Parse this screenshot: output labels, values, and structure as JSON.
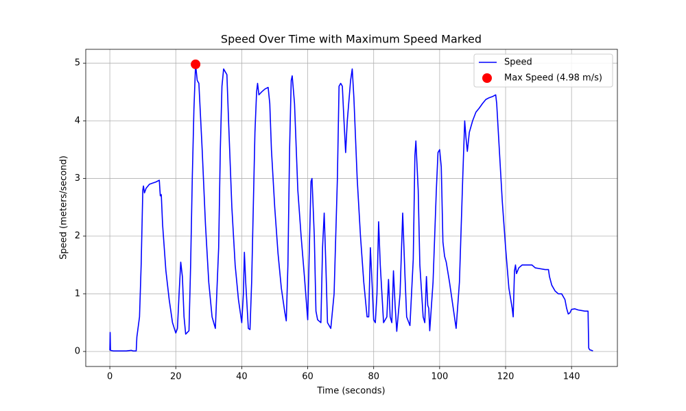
{
  "chart_data": {
    "type": "line",
    "title": "Speed Over Time with Maximum Speed Marked",
    "x_label": "Time (seconds)",
    "y_label": "Speed (meters/second)",
    "xlim": [
      -7.3,
      153.9
    ],
    "ylim": [
      -0.26,
      5.24
    ],
    "xticks": [
      0,
      20,
      40,
      60,
      80,
      100,
      120,
      140
    ],
    "yticks": [
      0,
      1,
      2,
      3,
      4,
      5
    ],
    "grid": true,
    "legend": "upper right",
    "series": [
      {
        "name": "Speed",
        "color": "blue",
        "type": "line",
        "x": [
          0,
          0.1,
          0.2,
          1,
          5,
          6.5,
          7,
          8,
          8.2,
          9,
          9.5,
          10,
          10.2,
          10.5,
          11,
          12,
          13,
          14,
          15,
          15.3,
          15.6,
          16,
          17,
          18,
          19,
          20,
          20.5,
          21,
          21.5,
          22,
          22.5,
          23,
          24,
          24.5,
          25,
          25.5,
          26,
          26.5,
          27,
          28,
          29,
          30,
          31,
          32,
          33,
          33.5,
          34,
          34.5,
          35,
          35.5,
          36,
          37,
          38,
          39,
          40,
          40.5,
          40.8,
          41.2,
          42,
          42.5,
          43,
          44,
          44.5,
          44.8,
          45.2,
          46,
          47,
          48,
          48.5,
          49,
          50,
          51,
          52,
          53,
          53.5,
          54,
          54.5,
          55,
          55.3,
          56,
          57,
          58,
          59,
          60,
          60.5,
          61,
          61.3,
          62,
          62.5,
          63,
          64,
          64.5,
          65,
          65.5,
          66,
          67,
          68,
          69,
          69.5,
          70,
          70.5,
          71,
          71.5,
          72,
          73,
          73.5,
          74,
          75,
          76,
          77,
          78,
          78.5,
          79,
          79.5,
          80,
          80.5,
          81,
          81.5,
          82,
          83,
          84,
          84.5,
          85,
          85.5,
          86,
          86.5,
          87,
          88,
          88.8,
          89.5,
          90,
          91,
          92,
          92.5,
          92.8,
          93.5,
          94,
          95,
          95.5,
          96,
          96.4,
          96.7,
          97,
          98,
          99,
          99.5,
          100,
          100.5,
          101,
          101.5,
          102,
          103,
          104,
          105,
          106,
          107,
          107.6,
          108,
          108.4,
          109,
          110,
          111,
          112,
          113,
          114,
          115,
          116,
          117,
          117.3,
          118,
          119,
          120,
          121,
          122,
          122.3,
          122.7,
          123,
          123.3,
          124,
          125,
          126,
          128,
          129,
          130,
          132,
          133,
          133.3,
          134,
          135,
          136,
          137,
          138,
          138.5,
          139,
          139.5,
          140,
          141,
          142,
          143,
          144,
          145,
          145.2,
          145.5,
          146,
          146.5
        ],
        "values": [
          0.02,
          0.33,
          0.02,
          0.01,
          0.01,
          0.02,
          0.01,
          0.01,
          0.25,
          0.6,
          1.5,
          2.8,
          2.87,
          2.75,
          2.83,
          2.9,
          2.92,
          2.94,
          2.97,
          2.7,
          2.72,
          2.2,
          1.4,
          0.9,
          0.5,
          0.32,
          0.4,
          1.0,
          1.55,
          1.3,
          0.6,
          0.3,
          0.36,
          1.5,
          3.0,
          4.2,
          4.98,
          4.7,
          4.65,
          3.5,
          2.2,
          1.2,
          0.6,
          0.4,
          1.8,
          3.5,
          4.6,
          4.9,
          4.85,
          4.8,
          4.0,
          2.5,
          1.5,
          0.9,
          0.5,
          1.0,
          1.72,
          1.2,
          0.4,
          0.38,
          1.2,
          3.8,
          4.5,
          4.65,
          4.45,
          4.5,
          4.55,
          4.58,
          4.3,
          3.5,
          2.5,
          1.7,
          1.1,
          0.7,
          0.53,
          1.5,
          3.5,
          4.7,
          4.78,
          4.3,
          2.8,
          2.0,
          1.3,
          0.55,
          1.8,
          2.95,
          3.0,
          2.0,
          0.7,
          0.55,
          0.5,
          1.8,
          2.4,
          1.5,
          0.5,
          0.4,
          1.0,
          3.0,
          4.6,
          4.65,
          4.6,
          4.0,
          3.45,
          4.0,
          4.7,
          4.9,
          4.4,
          3.0,
          2.0,
          1.2,
          0.6,
          0.6,
          1.8,
          1.2,
          0.55,
          0.5,
          1.0,
          2.25,
          1.5,
          0.5,
          0.6,
          1.25,
          0.6,
          0.5,
          1.4,
          0.8,
          0.35,
          1.0,
          2.4,
          1.3,
          0.6,
          0.45,
          1.6,
          3.4,
          3.65,
          2.8,
          1.5,
          0.6,
          0.5,
          1.3,
          0.8,
          0.75,
          0.36,
          1.2,
          2.8,
          3.45,
          3.5,
          3.2,
          1.9,
          1.65,
          1.55,
          1.2,
          0.8,
          0.4,
          1.2,
          3.0,
          4.0,
          3.7,
          3.47,
          3.8,
          4.0,
          4.15,
          4.22,
          4.3,
          4.37,
          4.4,
          4.42,
          4.45,
          4.3,
          3.6,
          2.6,
          1.8,
          1.1,
          0.75,
          0.6,
          1.4,
          1.5,
          1.35,
          1.45,
          1.5,
          1.5,
          1.5,
          1.45,
          1.44,
          1.42,
          1.42,
          1.3,
          1.15,
          1.05,
          1.0,
          1.0,
          0.9,
          0.75,
          0.65,
          0.67,
          0.73,
          0.74,
          0.72,
          0.71,
          0.7,
          0.7,
          0.06,
          0.03,
          0.02,
          0.01
        ]
      },
      {
        "name": "Max Speed (4.98 m/s)",
        "color": "red",
        "type": "scatter",
        "x": [
          26
        ],
        "values": [
          4.98
        ]
      }
    ]
  }
}
